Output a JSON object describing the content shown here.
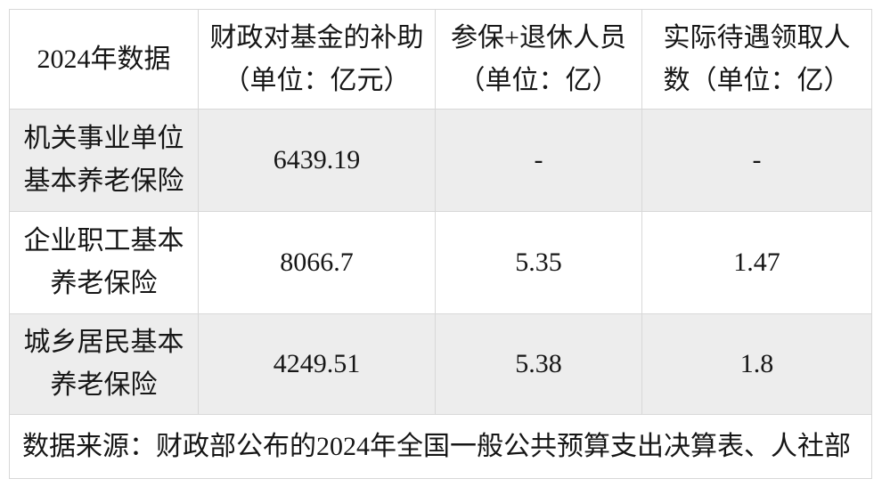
{
  "table": {
    "headers": [
      "2024年数据",
      "财政对基金的补助\n（单位：亿元）",
      "参保+退休人员\n（单位：亿）",
      "实际待遇领取人\n数（单位：亿）"
    ],
    "rows": [
      {
        "label": "机关事业单位\n基本养老保险",
        "values": [
          "6439.19",
          "-",
          "-"
        ]
      },
      {
        "label": "企业职工基本\n养老保险",
        "values": [
          "8066.7",
          "5.35",
          "1.47"
        ]
      },
      {
        "label": "城乡居民基本\n养老保险",
        "values": [
          "4249.51",
          "5.38",
          "1.8"
        ]
      }
    ],
    "source_note": "数据来源：财政部公布的2024年全国一般公共预算支出决算表、人社部"
  },
  "chart_data": {
    "type": "table",
    "title": "2024年数据",
    "columns": [
      "2024年数据",
      "财政对基金的补助（单位：亿元）",
      "参保+退休人员（单位：亿）",
      "实际待遇领取人数（单位：亿）"
    ],
    "rows": [
      {
        "category": "机关事业单位基本养老保险",
        "subsidy_yi_yuan": 6439.19,
        "participants_retirees_yi": null,
        "actual_benefit_recipients_yi": null
      },
      {
        "category": "企业职工基本养老保险",
        "subsidy_yi_yuan": 8066.7,
        "participants_retirees_yi": 5.35,
        "actual_benefit_recipients_yi": 1.47
      },
      {
        "category": "城乡居民基本养老保险",
        "subsidy_yi_yuan": 4249.51,
        "participants_retirees_yi": 5.38,
        "actual_benefit_recipients_yi": 1.8
      }
    ],
    "note": "数据来源：财政部公布的2024年全国一般公共预算支出决算表、人社部",
    "layout_hints": {
      "shaded_row_indices": [
        0,
        2
      ],
      "shaded_row_color": "#ededed",
      "border_color": "#d8d8d8",
      "text_color": "#161616",
      "background": "#ffffff"
    }
  }
}
